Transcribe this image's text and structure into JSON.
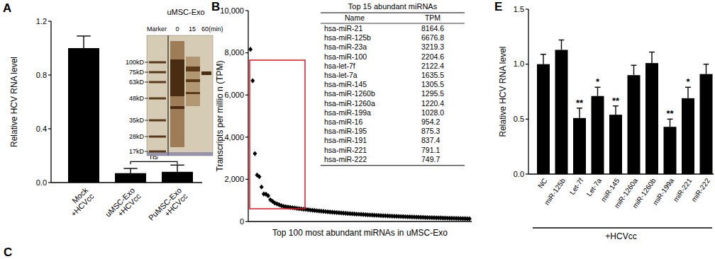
{
  "panel_label_c": "C",
  "chart_data": [
    {
      "type": "bar",
      "title": "A",
      "y_label": "Relative HCV RNA level",
      "categories": [
        "Mock\n+HCVcc",
        "uMSC-Exo\n+HCVcc",
        "PuMSC-Exo\n+HCVcc"
      ],
      "values": [
        1.0,
        0.07,
        0.08
      ],
      "errors": [
        0.09,
        0.035,
        0.05
      ],
      "color": "#000000",
      "ylim": [
        0,
        1.2
      ],
      "yticks": [
        {
          "value": 0,
          "label": "0.0"
        },
        0.4,
        0.8,
        1.2
      ],
      "annotations": [
        {
          "text": "ns",
          "between": [
            1,
            2
          ]
        }
      ],
      "inset": {
        "title": "uMSC-Exo",
        "lanes": [
          "Marker",
          "0",
          "15",
          "60(min)"
        ],
        "markers": [
          "100kD",
          "75kD",
          "63kD",
          "48kD",
          "35kD",
          "28kD",
          "17kD"
        ]
      }
    },
    {
      "type": "scatter",
      "title": "B",
      "y_label": "Transcripts per millio n (TPM)",
      "x_label": "Top 100 most abundant miRNAs in uMSC-Exo",
      "x": [
        1,
        2,
        3,
        4,
        5,
        6,
        7,
        8,
        9,
        10,
        11,
        12,
        13,
        14,
        15,
        16,
        17,
        18,
        19,
        20,
        21,
        22,
        23,
        24,
        25,
        26,
        27,
        28,
        29,
        30,
        31,
        32,
        33,
        34,
        35,
        36,
        37,
        38,
        39,
        40,
        41,
        42,
        43,
        44,
        45,
        46,
        47,
        48,
        49,
        50,
        51,
        52,
        53,
        54,
        55,
        56,
        57,
        58,
        59,
        60,
        61,
        62,
        63,
        64,
        65,
        66,
        67,
        68,
        69,
        70,
        71,
        72,
        73,
        74,
        75,
        76,
        77,
        78,
        79,
        80,
        81,
        82,
        83,
        84,
        85,
        86,
        87,
        88,
        89,
        90,
        91,
        92,
        93,
        94,
        95,
        96,
        97,
        98,
        99,
        100
      ],
      "values": [
        8164.6,
        6676.8,
        3219.3,
        2204.6,
        2122.4,
        1635.5,
        1305.5,
        1295.5,
        1220.4,
        1028.0,
        954.2,
        875.3,
        837.4,
        791.1,
        749.7,
        720,
        700,
        685,
        670,
        655,
        640,
        625,
        610,
        596,
        583,
        570,
        558,
        546,
        534,
        523,
        512,
        501,
        490,
        480,
        470,
        460,
        450,
        441,
        432,
        423,
        414,
        405,
        397,
        389,
        381,
        373,
        365,
        358,
        351,
        344,
        337,
        330,
        323,
        317,
        311,
        305,
        299,
        293,
        287,
        281,
        275,
        270,
        265,
        260,
        255,
        250,
        245,
        240,
        235,
        231,
        227,
        223,
        219,
        215,
        211,
        207,
        203,
        199,
        195,
        191,
        187,
        184,
        181,
        178,
        175,
        172,
        169,
        166,
        163,
        160,
        157,
        154,
        151,
        148,
        145,
        142,
        139,
        136,
        133,
        130
      ],
      "marker": "diamond",
      "color": "#000000",
      "tick_labels": "y",
      "xlim": [
        0,
        101
      ],
      "ylim": [
        0,
        10000
      ],
      "yticks": [
        0,
        {
          "value": 2000,
          "label": "2,000"
        },
        {
          "value": 4000,
          "label": "4,000"
        },
        {
          "value": 6000,
          "label": "6,000"
        },
        {
          "value": 8000,
          "label": "8,000"
        },
        {
          "value": 10000,
          "label": "10,000"
        }
      ],
      "table": {
        "title": "Top 15 abundant miRNAs",
        "columns": [
          "Name",
          "TPM"
        ],
        "rows": [
          [
            "hsa-miR-21",
            "8164.6"
          ],
          [
            "hsa-miR-125b",
            "6676.8"
          ],
          [
            "hsa-miR-23a",
            "3219.3"
          ],
          [
            "hsa-miR-100",
            "2204.6"
          ],
          [
            "hsa-let-7f",
            "2122.4"
          ],
          [
            "hsa-let-7a",
            "1635.5"
          ],
          [
            "hsa-miR-145",
            "1305.5"
          ],
          [
            "hsa-miR-1260b",
            "1295.5"
          ],
          [
            "hsa-miR-1260a",
            "1220.4"
          ],
          [
            "hsa-miR-199a",
            "1028.0"
          ],
          [
            "hsa-miR-16",
            "954.2"
          ],
          [
            "hsa-miR-195",
            "875.3"
          ],
          [
            "hsa-miR-191",
            "837.4"
          ],
          [
            "hsa-miR-221",
            "791.1"
          ],
          [
            "hsa-miR-222",
            "749.7"
          ]
        ]
      }
    },
    {
      "type": "bar",
      "title": "E",
      "y_label": "Relative HCV RNA level",
      "x_label": "+HCVcc",
      "categories": [
        "NC",
        "miR-125b",
        "Let-7f",
        "Let-7a",
        "miR-145",
        "miR-1260a",
        "miR-1260b",
        "miR-199a",
        "miR-221",
        "miR-222"
      ],
      "values": [
        1.0,
        1.13,
        0.51,
        0.71,
        0.54,
        0.9,
        1.01,
        0.43,
        0.69,
        0.91
      ],
      "errors": [
        0.09,
        0.09,
        0.09,
        0.08,
        0.08,
        0.09,
        0.1,
        0.07,
        0.1,
        0.09
      ],
      "significance": [
        null,
        null,
        "**",
        "*",
        "**",
        null,
        null,
        "**",
        "*",
        null
      ],
      "color": "#000000",
      "ylim": [
        0,
        1.5
      ],
      "yticks": [
        {
          "value": 0,
          "label": "0.0"
        },
        0.5,
        {
          "value": 1,
          "label": "1.0"
        },
        1.5
      ]
    }
  ]
}
